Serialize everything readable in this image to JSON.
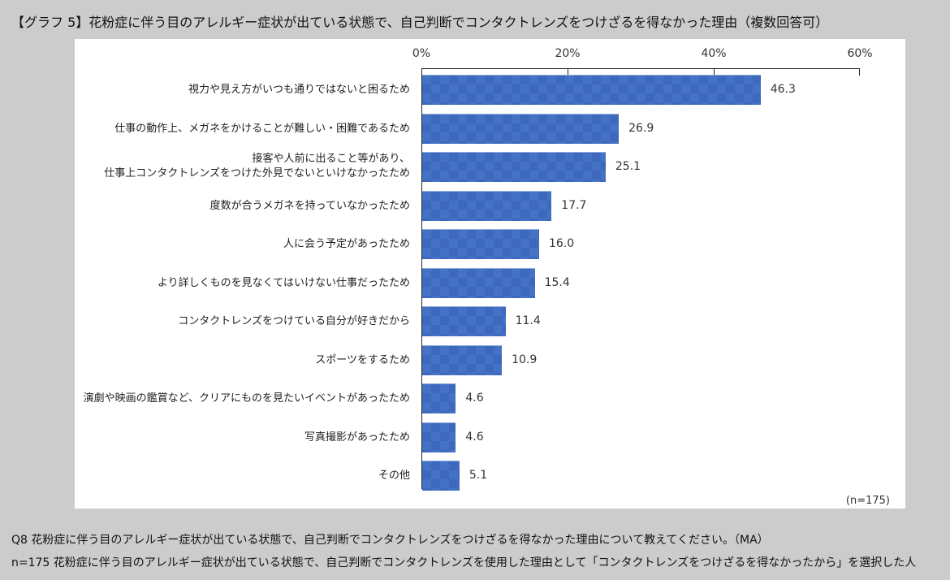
{
  "title": "【グラフ 5】花粉症に伴う目のアレルギー症状が出ている状態で、自己判断でコンタクトレンズをつけざるを得なかった理由（複数回答可）",
  "axis": {
    "ticks": [
      "0%",
      "20%",
      "40%",
      "60%"
    ]
  },
  "sample_note": "(n=175)",
  "footnotes": {
    "question": "Q8  花粉症に伴う目のアレルギー症状が出ている状態で、自己判断でコンタクトレンズをつけざるを得なかった理由について教えてください。（MA）",
    "base": "n=175  花粉症に伴う目のアレルギー症状が出ている状態で、自己判断でコンタクトレンズを使用した理由として「コンタクトレンズをつけざるを得なかったから」を選択した人"
  },
  "colors": {
    "bar": "#4472c4",
    "bar_pattern": "#3e68bd",
    "background": "#cccccc",
    "panel": "#ffffff"
  },
  "chart_data": {
    "type": "bar",
    "orientation": "horizontal",
    "title": "【グラフ 5】花粉症に伴う目のアレルギー症状が出ている状態で、自己判断でコンタクトレンズをつけざるを得なかった理由（複数回答可）",
    "xlabel": "",
    "ylabel": "",
    "xlim": [
      0,
      60
    ],
    "x_ticks": [
      "0%",
      "20%",
      "40%",
      "60%"
    ],
    "grid": false,
    "legend": null,
    "unit": "%",
    "n": 175,
    "categories": [
      "視力や見え方がいつも通りではないと困るため",
      "仕事の動作上、メガネをかけることが難しい・困難であるため",
      "接客や人前に出ること等があり、仕事上コンタクトレンズをつけた外見でないといけなかったため",
      "度数が合うメガネを持っていなかったため",
      "人に会う予定があったため",
      "より詳しくものを見なくてはいけない仕事だったため",
      "コンタクトレンズをつけている自分が好きだから",
      "スポーツをするため",
      "演劇や映画の鑑賞など、クリアにものを見たいイベントがあったため",
      "写真撮影があったため",
      "その他"
    ],
    "values": [
      46.3,
      26.9,
      25.1,
      17.7,
      16.0,
      15.4,
      11.4,
      10.9,
      4.6,
      4.6,
      5.1
    ]
  },
  "rows": [
    {
      "label1": "視力や見え方がいつも通りではないと困るため",
      "label2": "",
      "value": "46.3",
      "num": 46.3
    },
    {
      "label1": "仕事の動作上、メガネをかけることが難しい・困難であるため",
      "label2": "",
      "value": "26.9",
      "num": 26.9
    },
    {
      "label1": "接客や人前に出ること等があり、",
      "label2": "仕事上コンタクトレンズをつけた外見でないといけなかったため",
      "value": "25.1",
      "num": 25.1
    },
    {
      "label1": "度数が合うメガネを持っていなかったため",
      "label2": "",
      "value": "17.7",
      "num": 17.7
    },
    {
      "label1": "人に会う予定があったため",
      "label2": "",
      "value": "16.0",
      "num": 16.0
    },
    {
      "label1": "より詳しくものを見なくてはいけない仕事だったため",
      "label2": "",
      "value": "15.4",
      "num": 15.4
    },
    {
      "label1": "コンタクトレンズをつけている自分が好きだから",
      "label2": "",
      "value": "11.4",
      "num": 11.4
    },
    {
      "label1": "スポーツをするため",
      "label2": "",
      "value": "10.9",
      "num": 10.9
    },
    {
      "label1": "演劇や映画の鑑賞など、クリアにものを見たいイベントがあったため",
      "label2": "",
      "value": "4.6",
      "num": 4.6
    },
    {
      "label1": "写真撮影があったため",
      "label2": "",
      "value": "4.6",
      "num": 4.6
    },
    {
      "label1": "その他",
      "label2": "",
      "value": "5.1",
      "num": 5.1
    }
  ]
}
